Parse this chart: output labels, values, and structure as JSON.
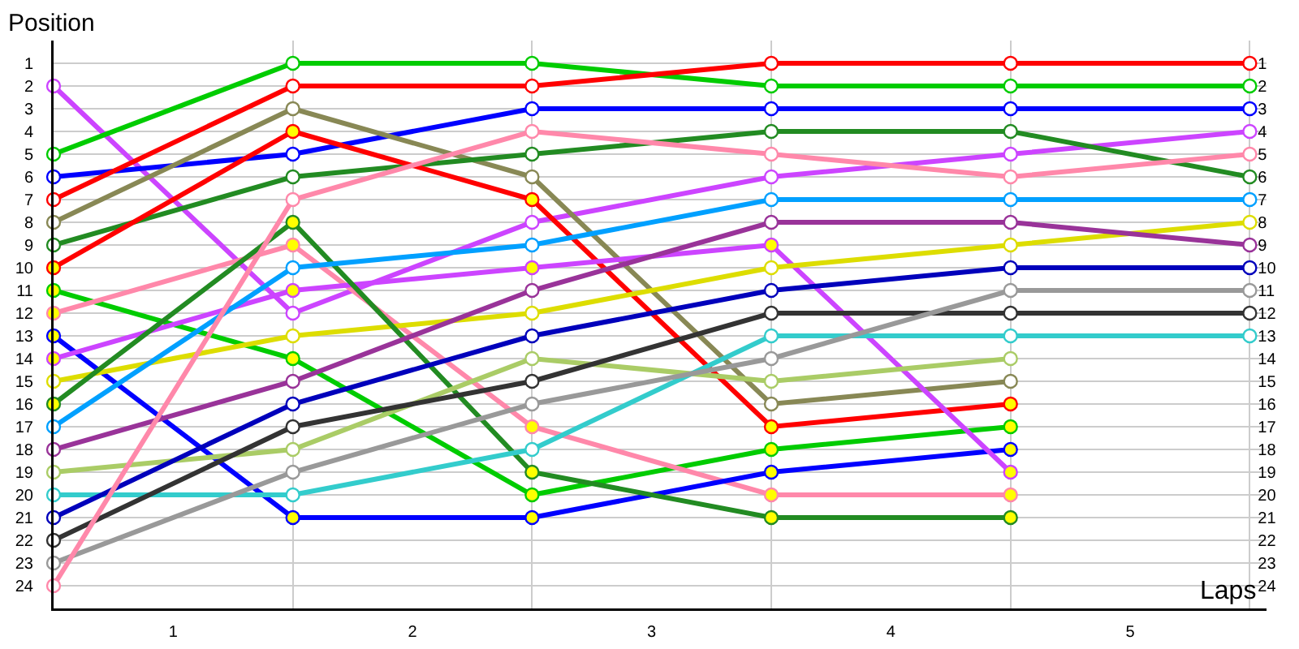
{
  "chart_data": {
    "type": "line",
    "xlabel": "Laps",
    "ylabel": "Position",
    "x": [
      0,
      1,
      2,
      3,
      4,
      5
    ],
    "xlim": [
      0,
      5.07
    ],
    "xticks": [
      {
        "value": 0.5,
        "label": "1"
      },
      {
        "value": 1,
        "label": null
      },
      {
        "value": 1.5,
        "label": "2"
      },
      {
        "value": 2,
        "label": null
      },
      {
        "value": 2.5,
        "label": "3"
      },
      {
        "value": 3,
        "label": null
      },
      {
        "value": 3.5,
        "label": "4"
      },
      {
        "value": 4,
        "label": null
      },
      {
        "value": 4.5,
        "label": "5"
      },
      {
        "value": 5,
        "label": null
      }
    ],
    "ylim": [
      25,
      0
    ],
    "yticks": [
      1,
      2,
      3,
      4,
      5,
      6,
      7,
      8,
      9,
      10,
      11,
      12,
      13,
      14,
      15,
      16,
      17,
      18,
      19,
      20,
      21,
      22,
      23,
      24
    ],
    "y2lim": [
      25,
      0
    ],
    "y2ticks": [
      1,
      2,
      3,
      4,
      5,
      6,
      7,
      8,
      9,
      10,
      11,
      12,
      13,
      14,
      15,
      16,
      17,
      18,
      19,
      20,
      21,
      22,
      23,
      24
    ],
    "grid": true,
    "marker": "circle",
    "line_style": "solid",
    "series": [
      {
        "color": "#cc44ff",
        "values": [
          2,
          12,
          8,
          6,
          5,
          4
        ]
      },
      {
        "color": "#00cc00",
        "values": [
          5,
          1,
          1,
          2,
          2,
          2
        ]
      },
      {
        "color": "#0000ff",
        "values": [
          6,
          5,
          3,
          3,
          3,
          3
        ]
      },
      {
        "color": "#ff0000",
        "values": [
          7,
          2,
          2,
          1,
          1,
          1
        ]
      },
      {
        "color": "#888855",
        "values": [
          8,
          3,
          6,
          16,
          15,
          null
        ]
      },
      {
        "color": "#228b22",
        "values": [
          9,
          6,
          5,
          4,
          4,
          6
        ]
      },
      {
        "color": "#ff0000",
        "values": [
          10,
          4,
          7,
          17,
          16,
          null
        ],
        "colors": [
          "#ffff00",
          "#ffff00",
          "#ffff00",
          "#ffff00",
          "#ffff00",
          "#ffff00"
        ]
      },
      {
        "color": "#00cc00",
        "values": [
          11,
          14,
          20,
          18,
          17,
          null
        ],
        "colors": [
          "#ffff00",
          "#ffff00",
          "#ffff00",
          "#ffff00",
          "#ffff00",
          "#ffff00"
        ]
      },
      {
        "color": "#ff88aa",
        "values": [
          12,
          9,
          17,
          20,
          20,
          null
        ],
        "colors": [
          "#ffff00",
          "#ffff00",
          "#ffff00",
          "#ffff00",
          "#ffff00",
          "#ffff00"
        ]
      },
      {
        "color": "#0000ff",
        "values": [
          13,
          21,
          21,
          19,
          18,
          null
        ],
        "colors": [
          "#ffff00",
          "#ffff00",
          "#ffff00",
          "#ffff00",
          "#ffff00",
          "#ffff00"
        ]
      },
      {
        "color": "#cc44ff",
        "values": [
          14,
          11,
          10,
          9,
          19,
          null
        ],
        "colors": [
          "#ffff00",
          "#ffff00",
          "#ffff00",
          "#ffff00",
          "#ffff00",
          "#ffff00"
        ]
      },
      {
        "color": "#dddd00",
        "values": [
          15,
          13,
          12,
          10,
          9,
          8
        ]
      },
      {
        "color": "#228b22",
        "values": [
          16,
          8,
          19,
          21,
          21,
          null
        ],
        "colors": [
          "#ffff00",
          "#ffff00",
          "#ffff00",
          "#ffff00",
          "#ffff00",
          "#ffff00"
        ]
      },
      {
        "color": "#00a0ff",
        "values": [
          17,
          10,
          9,
          7,
          7,
          7
        ]
      },
      {
        "color": "#993399",
        "values": [
          18,
          15,
          11,
          8,
          8,
          9
        ]
      },
      {
        "color": "#aacc66",
        "values": [
          19,
          18,
          14,
          15,
          14,
          null
        ]
      },
      {
        "color": "#33cccc",
        "values": [
          20,
          20,
          18,
          13,
          13,
          13
        ]
      },
      {
        "color": "#0000bb",
        "values": [
          21,
          16,
          13,
          11,
          10,
          10
        ]
      },
      {
        "color": "#333333",
        "values": [
          22,
          17,
          15,
          12,
          12,
          12
        ]
      },
      {
        "color": "#999999",
        "values": [
          23,
          19,
          16,
          14,
          11,
          11
        ]
      },
      {
        "color": "#ff88aa",
        "values": [
          24,
          7,
          4,
          5,
          6,
          5
        ]
      }
    ]
  }
}
